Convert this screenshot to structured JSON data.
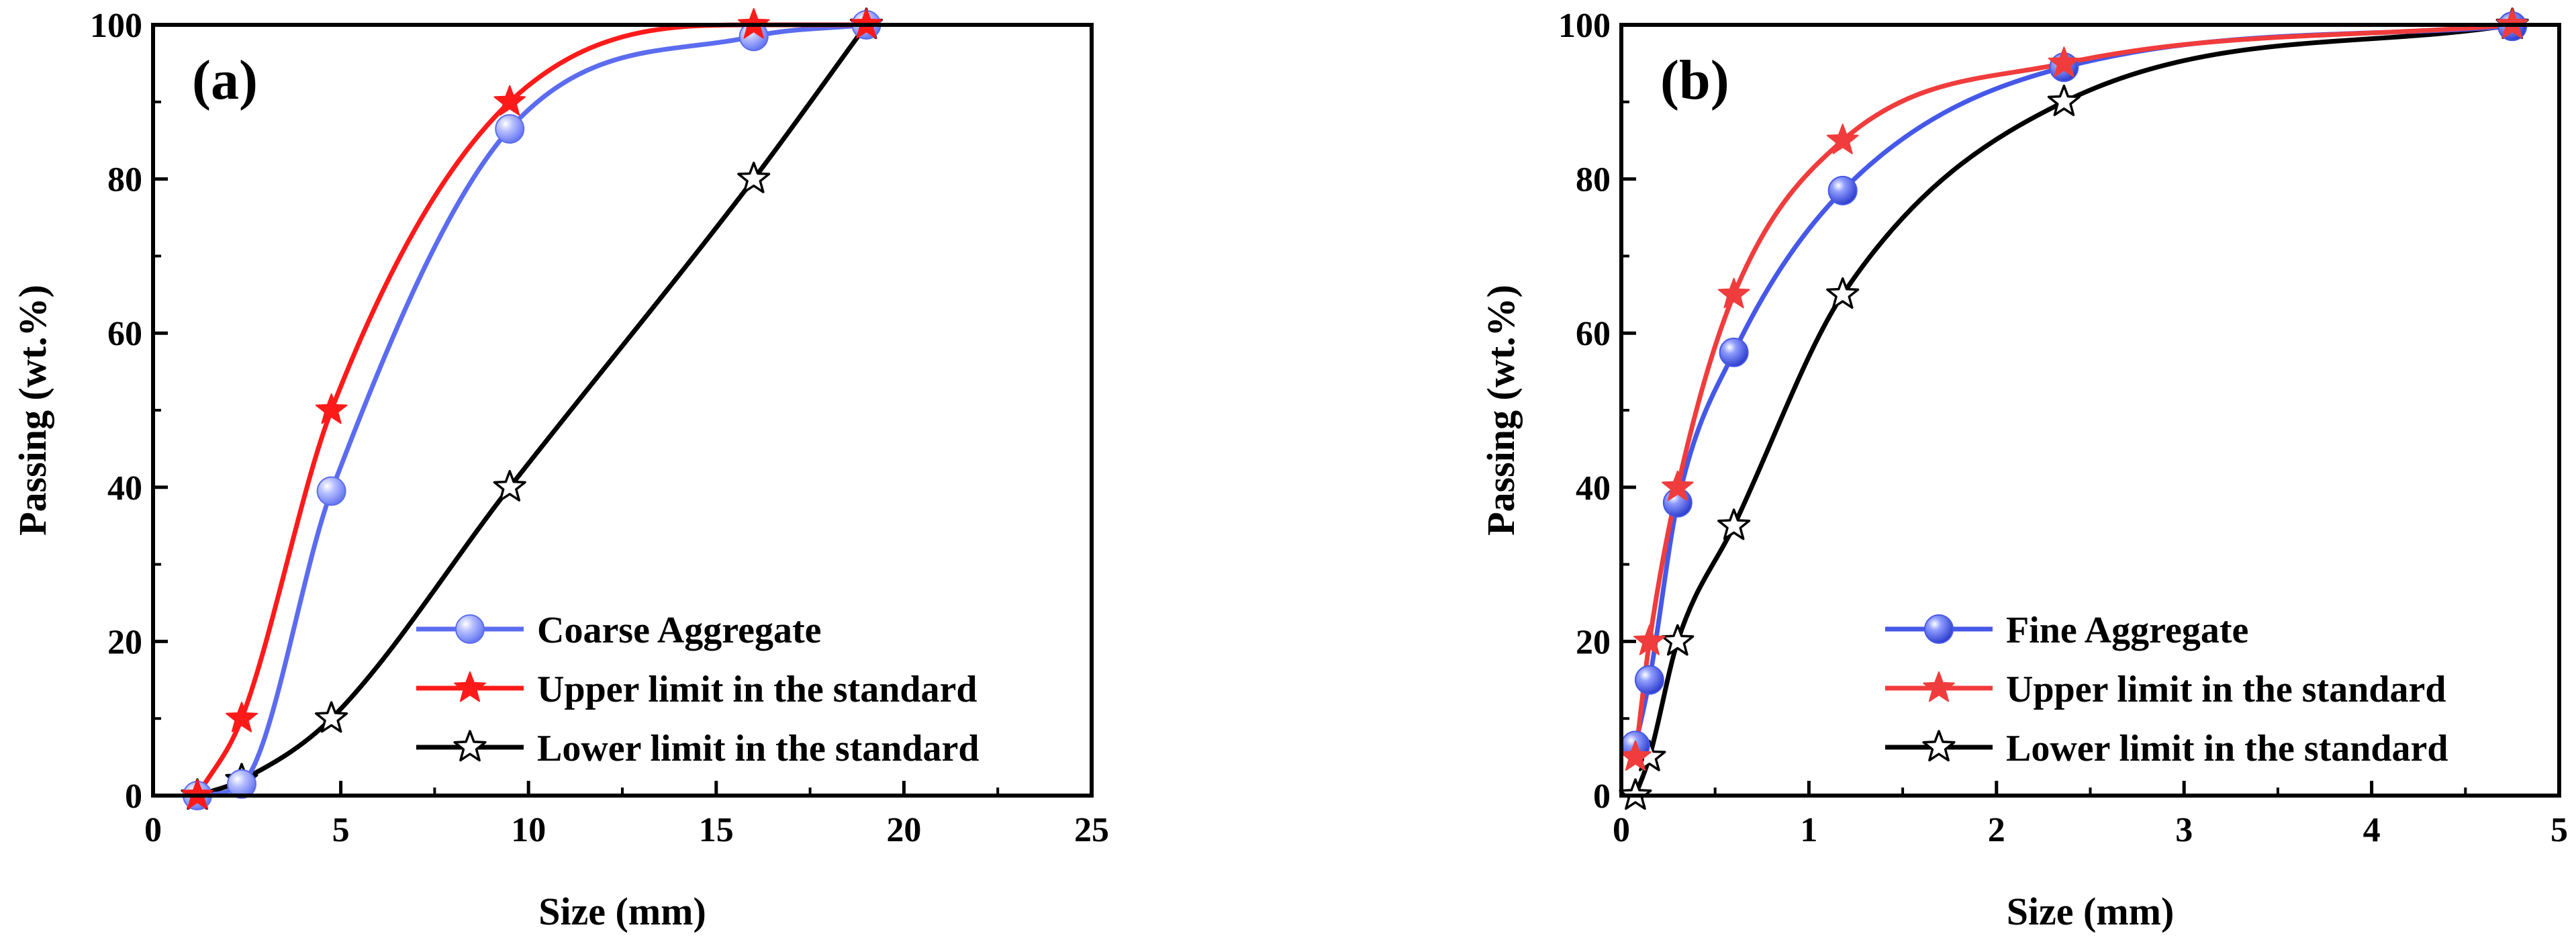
{
  "figure": {
    "background": "#ffffff"
  },
  "chart_data": [
    {
      "type": "line",
      "panel_label": "(a)",
      "title": "",
      "xlabel": "Size (mm)",
      "ylabel": "Passing (wt.%)",
      "xlim": [
        0,
        25
      ],
      "ylim": [
        0,
        100
      ],
      "xticks": [
        0,
        5,
        10,
        15,
        20,
        25
      ],
      "xtick_labels": [
        "0",
        "5",
        "10",
        "15",
        "20",
        "25"
      ],
      "yticks": [
        0,
        20,
        40,
        60,
        80,
        100
      ],
      "ytick_labels": [
        "0",
        "20",
        "40",
        "60",
        "80",
        "100"
      ],
      "grid": false,
      "legend_position": "bottom-right",
      "series": [
        {
          "name": "Coarse Aggregate",
          "color": "#5b6cf0",
          "marker": "sphere",
          "x": [
            1.18,
            2.36,
            4.75,
            9.5,
            16,
            19
          ],
          "y": [
            0,
            1.5,
            39.5,
            86.5,
            98.5,
            100
          ]
        },
        {
          "name": "Upper limit in the standard",
          "color": "#ff1a1a",
          "marker": "star-filled",
          "x": [
            1.18,
            2.36,
            4.75,
            9.5,
            16,
            19
          ],
          "y": [
            0,
            10,
            50,
            90,
            100,
            100
          ]
        },
        {
          "name": "Lower limit in the standard",
          "color": "#000000",
          "marker": "star-open",
          "x": [
            1.18,
            2.36,
            4.75,
            9.5,
            16,
            19
          ],
          "y": [
            0,
            2,
            10,
            40,
            80,
            100
          ]
        }
      ]
    },
    {
      "type": "line",
      "panel_label": "(b)",
      "title": "",
      "xlabel": "Size (mm)",
      "ylabel": "Passing (wt.%)",
      "xlim": [
        0,
        5
      ],
      "ylim": [
        0,
        100
      ],
      "xticks": [
        0,
        1,
        2,
        3,
        4,
        5
      ],
      "xtick_labels": [
        "0",
        "1",
        "2",
        "3",
        "4",
        "5"
      ],
      "yticks": [
        0,
        20,
        40,
        60,
        80,
        100
      ],
      "ytick_labels": [
        "0",
        "20",
        "40",
        "60",
        "80",
        "100"
      ],
      "grid": false,
      "legend_position": "bottom-right",
      "series": [
        {
          "name": "Fine Aggregate",
          "color": "#4658e8",
          "marker": "sphere",
          "x": [
            0.075,
            0.15,
            0.3,
            0.6,
            1.18,
            2.36,
            4.75
          ],
          "y": [
            6.5,
            15,
            38,
            57.5,
            78.5,
            94.5,
            99.8
          ]
        },
        {
          "name": "Upper limit in the standard",
          "color": "#f03c3c",
          "marker": "star-filled",
          "x": [
            0.075,
            0.15,
            0.3,
            0.6,
            1.18,
            2.36,
            4.75
          ],
          "y": [
            5,
            20,
            40,
            65,
            85,
            95,
            100
          ]
        },
        {
          "name": "Lower limit in the standard",
          "color": "#000000",
          "marker": "star-open",
          "x": [
            0.075,
            0.15,
            0.3,
            0.6,
            1.18,
            2.36,
            4.75
          ],
          "y": [
            0,
            5,
            20,
            35,
            65,
            90,
            100
          ]
        }
      ]
    }
  ]
}
